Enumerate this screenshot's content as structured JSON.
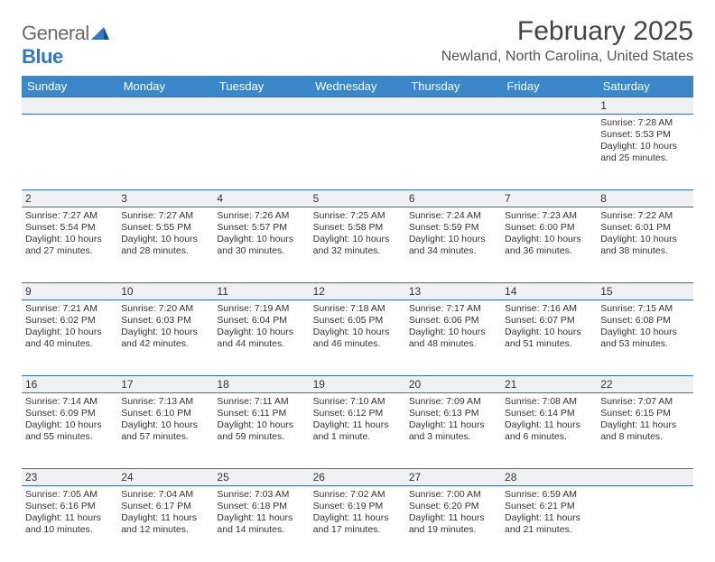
{
  "logo": {
    "word1": "General",
    "word2": "Blue"
  },
  "title": "February 2025",
  "location": "Newland, North Carolina, United States",
  "colors": {
    "header_bg": "#3b87c8",
    "header_text": "#ffffff",
    "rule": "#3b6fa0",
    "daynum_bg": "#eef0f1",
    "logo_gray": "#6b6b6b",
    "logo_blue": "#2f78c4"
  },
  "weekdays": [
    "Sunday",
    "Monday",
    "Tuesday",
    "Wednesday",
    "Thursday",
    "Friday",
    "Saturday"
  ],
  "weeks": [
    [
      null,
      null,
      null,
      null,
      null,
      null,
      {
        "n": "1",
        "sr": "7:28 AM",
        "ss": "5:53 PM",
        "dl": "10 hours and 25 minutes."
      }
    ],
    [
      {
        "n": "2",
        "sr": "7:27 AM",
        "ss": "5:54 PM",
        "dl": "10 hours and 27 minutes."
      },
      {
        "n": "3",
        "sr": "7:27 AM",
        "ss": "5:55 PM",
        "dl": "10 hours and 28 minutes."
      },
      {
        "n": "4",
        "sr": "7:26 AM",
        "ss": "5:57 PM",
        "dl": "10 hours and 30 minutes."
      },
      {
        "n": "5",
        "sr": "7:25 AM",
        "ss": "5:58 PM",
        "dl": "10 hours and 32 minutes."
      },
      {
        "n": "6",
        "sr": "7:24 AM",
        "ss": "5:59 PM",
        "dl": "10 hours and 34 minutes."
      },
      {
        "n": "7",
        "sr": "7:23 AM",
        "ss": "6:00 PM",
        "dl": "10 hours and 36 minutes."
      },
      {
        "n": "8",
        "sr": "7:22 AM",
        "ss": "6:01 PM",
        "dl": "10 hours and 38 minutes."
      }
    ],
    [
      {
        "n": "9",
        "sr": "7:21 AM",
        "ss": "6:02 PM",
        "dl": "10 hours and 40 minutes."
      },
      {
        "n": "10",
        "sr": "7:20 AM",
        "ss": "6:03 PM",
        "dl": "10 hours and 42 minutes."
      },
      {
        "n": "11",
        "sr": "7:19 AM",
        "ss": "6:04 PM",
        "dl": "10 hours and 44 minutes."
      },
      {
        "n": "12",
        "sr": "7:18 AM",
        "ss": "6:05 PM",
        "dl": "10 hours and 46 minutes."
      },
      {
        "n": "13",
        "sr": "7:17 AM",
        "ss": "6:06 PM",
        "dl": "10 hours and 48 minutes."
      },
      {
        "n": "14",
        "sr": "7:16 AM",
        "ss": "6:07 PM",
        "dl": "10 hours and 51 minutes."
      },
      {
        "n": "15",
        "sr": "7:15 AM",
        "ss": "6:08 PM",
        "dl": "10 hours and 53 minutes."
      }
    ],
    [
      {
        "n": "16",
        "sr": "7:14 AM",
        "ss": "6:09 PM",
        "dl": "10 hours and 55 minutes."
      },
      {
        "n": "17",
        "sr": "7:13 AM",
        "ss": "6:10 PM",
        "dl": "10 hours and 57 minutes."
      },
      {
        "n": "18",
        "sr": "7:11 AM",
        "ss": "6:11 PM",
        "dl": "10 hours and 59 minutes."
      },
      {
        "n": "19",
        "sr": "7:10 AM",
        "ss": "6:12 PM",
        "dl": "11 hours and 1 minute."
      },
      {
        "n": "20",
        "sr": "7:09 AM",
        "ss": "6:13 PM",
        "dl": "11 hours and 3 minutes."
      },
      {
        "n": "21",
        "sr": "7:08 AM",
        "ss": "6:14 PM",
        "dl": "11 hours and 6 minutes."
      },
      {
        "n": "22",
        "sr": "7:07 AM",
        "ss": "6:15 PM",
        "dl": "11 hours and 8 minutes."
      }
    ],
    [
      {
        "n": "23",
        "sr": "7:05 AM",
        "ss": "6:16 PM",
        "dl": "11 hours and 10 minutes."
      },
      {
        "n": "24",
        "sr": "7:04 AM",
        "ss": "6:17 PM",
        "dl": "11 hours and 12 minutes."
      },
      {
        "n": "25",
        "sr": "7:03 AM",
        "ss": "6:18 PM",
        "dl": "11 hours and 14 minutes."
      },
      {
        "n": "26",
        "sr": "7:02 AM",
        "ss": "6:19 PM",
        "dl": "11 hours and 17 minutes."
      },
      {
        "n": "27",
        "sr": "7:00 AM",
        "ss": "6:20 PM",
        "dl": "11 hours and 19 minutes."
      },
      {
        "n": "28",
        "sr": "6:59 AM",
        "ss": "6:21 PM",
        "dl": "11 hours and 21 minutes."
      },
      null
    ]
  ],
  "labels": {
    "sunrise": "Sunrise:",
    "sunset": "Sunset:",
    "daylight": "Daylight:"
  }
}
